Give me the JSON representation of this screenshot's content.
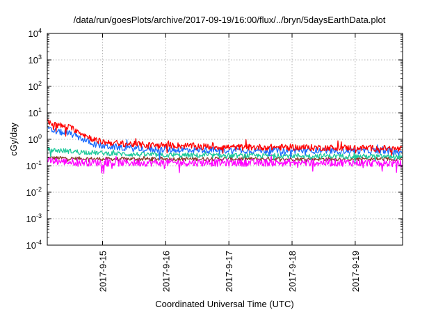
{
  "chart_data": {
    "type": "line",
    "title": "/data/run/goesPlots/archive/2017-09-19/16:00/flux/../bryn/5daysEarthData.plot",
    "xlabel": "Coordinated Universal Time (UTC)",
    "ylabel": "cGy/day",
    "yscale": "log",
    "ylim": [
      0.0001,
      10000
    ],
    "xlim": [
      "2017-09-14 03:00",
      "2017-09-19 18:00"
    ],
    "grid": true,
    "y_ticks": [
      {
        "base": "10",
        "exp": "-4",
        "value": 0.0001
      },
      {
        "base": "10",
        "exp": "-3",
        "value": 0.001
      },
      {
        "base": "10",
        "exp": "-2",
        "value": 0.01
      },
      {
        "base": "10",
        "exp": "-1",
        "value": 0.1
      },
      {
        "base": "10",
        "exp": "0",
        "value": 1
      },
      {
        "base": "10",
        "exp": "1",
        "value": 10
      },
      {
        "base": "10",
        "exp": "2",
        "value": 100
      },
      {
        "base": "10",
        "exp": "3",
        "value": 1000
      },
      {
        "base": "10",
        "exp": "4",
        "value": 10000
      }
    ],
    "x_ticks": [
      {
        "label": "2017-9-15",
        "value": "2017-09-15 00:00"
      },
      {
        "label": "2017-9-16",
        "value": "2017-09-16 00:00"
      },
      {
        "label": "2017-9-17",
        "value": "2017-09-17 00:00"
      },
      {
        "label": "2017-9-18",
        "value": "2017-09-18 00:00"
      },
      {
        "label": "2017-9-19",
        "value": "2017-09-19 00:00"
      }
    ],
    "series": [
      {
        "color": "#ff0000",
        "x": [
          "2017-09-14 03:00",
          "2017-09-14 06:00",
          "2017-09-14 09:00",
          "2017-09-14 12:00",
          "2017-09-14 15:00",
          "2017-09-14 18:00",
          "2017-09-14 21:00",
          "2017-09-15 00:00",
          "2017-09-15 06:00",
          "2017-09-15 12:00",
          "2017-09-15 18:00",
          "2017-09-16 00:00",
          "2017-09-16 12:00",
          "2017-09-17 00:00",
          "2017-09-17 12:00",
          "2017-09-18 00:00",
          "2017-09-18 12:00",
          "2017-09-19 00:00",
          "2017-09-19 12:00",
          "2017-09-19 18:00"
        ],
        "y": [
          4.5,
          3.6,
          3.1,
          2.7,
          2.0,
          1.3,
          0.95,
          0.8,
          0.7,
          0.65,
          0.6,
          0.6,
          0.55,
          0.5,
          0.5,
          0.5,
          0.48,
          0.48,
          0.45,
          0.42
        ]
      },
      {
        "color": "#1a6cff",
        "x": [
          "2017-09-14 03:00",
          "2017-09-14 06:00",
          "2017-09-14 09:00",
          "2017-09-14 12:00",
          "2017-09-14 15:00",
          "2017-09-14 18:00",
          "2017-09-14 21:00",
          "2017-09-15 00:00",
          "2017-09-15 06:00",
          "2017-09-15 12:00",
          "2017-09-15 18:00",
          "2017-09-16 00:00",
          "2017-09-16 12:00",
          "2017-09-17 00:00",
          "2017-09-17 12:00",
          "2017-09-18 00:00",
          "2017-09-18 12:00",
          "2017-09-19 00:00",
          "2017-09-19 12:00",
          "2017-09-19 18:00"
        ],
        "y": [
          2.4,
          2.0,
          1.8,
          1.6,
          1.2,
          0.85,
          0.65,
          0.55,
          0.5,
          0.45,
          0.42,
          0.4,
          0.4,
          0.38,
          0.38,
          0.38,
          0.37,
          0.37,
          0.36,
          0.35
        ]
      },
      {
        "color": "#1bc99a",
        "x": [
          "2017-09-14 03:00",
          "2017-09-14 12:00",
          "2017-09-15 00:00",
          "2017-09-15 12:00",
          "2017-09-16 00:00",
          "2017-09-17 00:00",
          "2017-09-18 00:00",
          "2017-09-19 00:00",
          "2017-09-19 18:00"
        ],
        "y": [
          0.4,
          0.35,
          0.3,
          0.27,
          0.25,
          0.24,
          0.24,
          0.23,
          0.22
        ]
      },
      {
        "color": "#8b3a2a",
        "x": [
          "2017-09-14 03:00",
          "2017-09-14 12:00",
          "2017-09-15 00:00",
          "2017-09-15 12:00",
          "2017-09-16 00:00",
          "2017-09-17 00:00",
          "2017-09-18 00:00",
          "2017-09-19 00:00",
          "2017-09-19 18:00"
        ],
        "y": [
          0.2,
          0.19,
          0.18,
          0.18,
          0.18,
          0.18,
          0.18,
          0.18,
          0.18
        ]
      },
      {
        "color": "#ff00ff",
        "x": [
          "2017-09-14 03:00",
          "2017-09-14 12:00",
          "2017-09-15 00:00",
          "2017-09-15 12:00",
          "2017-09-16 00:00",
          "2017-09-17 00:00",
          "2017-09-18 00:00",
          "2017-09-19 00:00",
          "2017-09-19 18:00"
        ],
        "y": [
          0.15,
          0.14,
          0.13,
          0.13,
          0.13,
          0.13,
          0.13,
          0.13,
          0.12
        ]
      }
    ]
  }
}
